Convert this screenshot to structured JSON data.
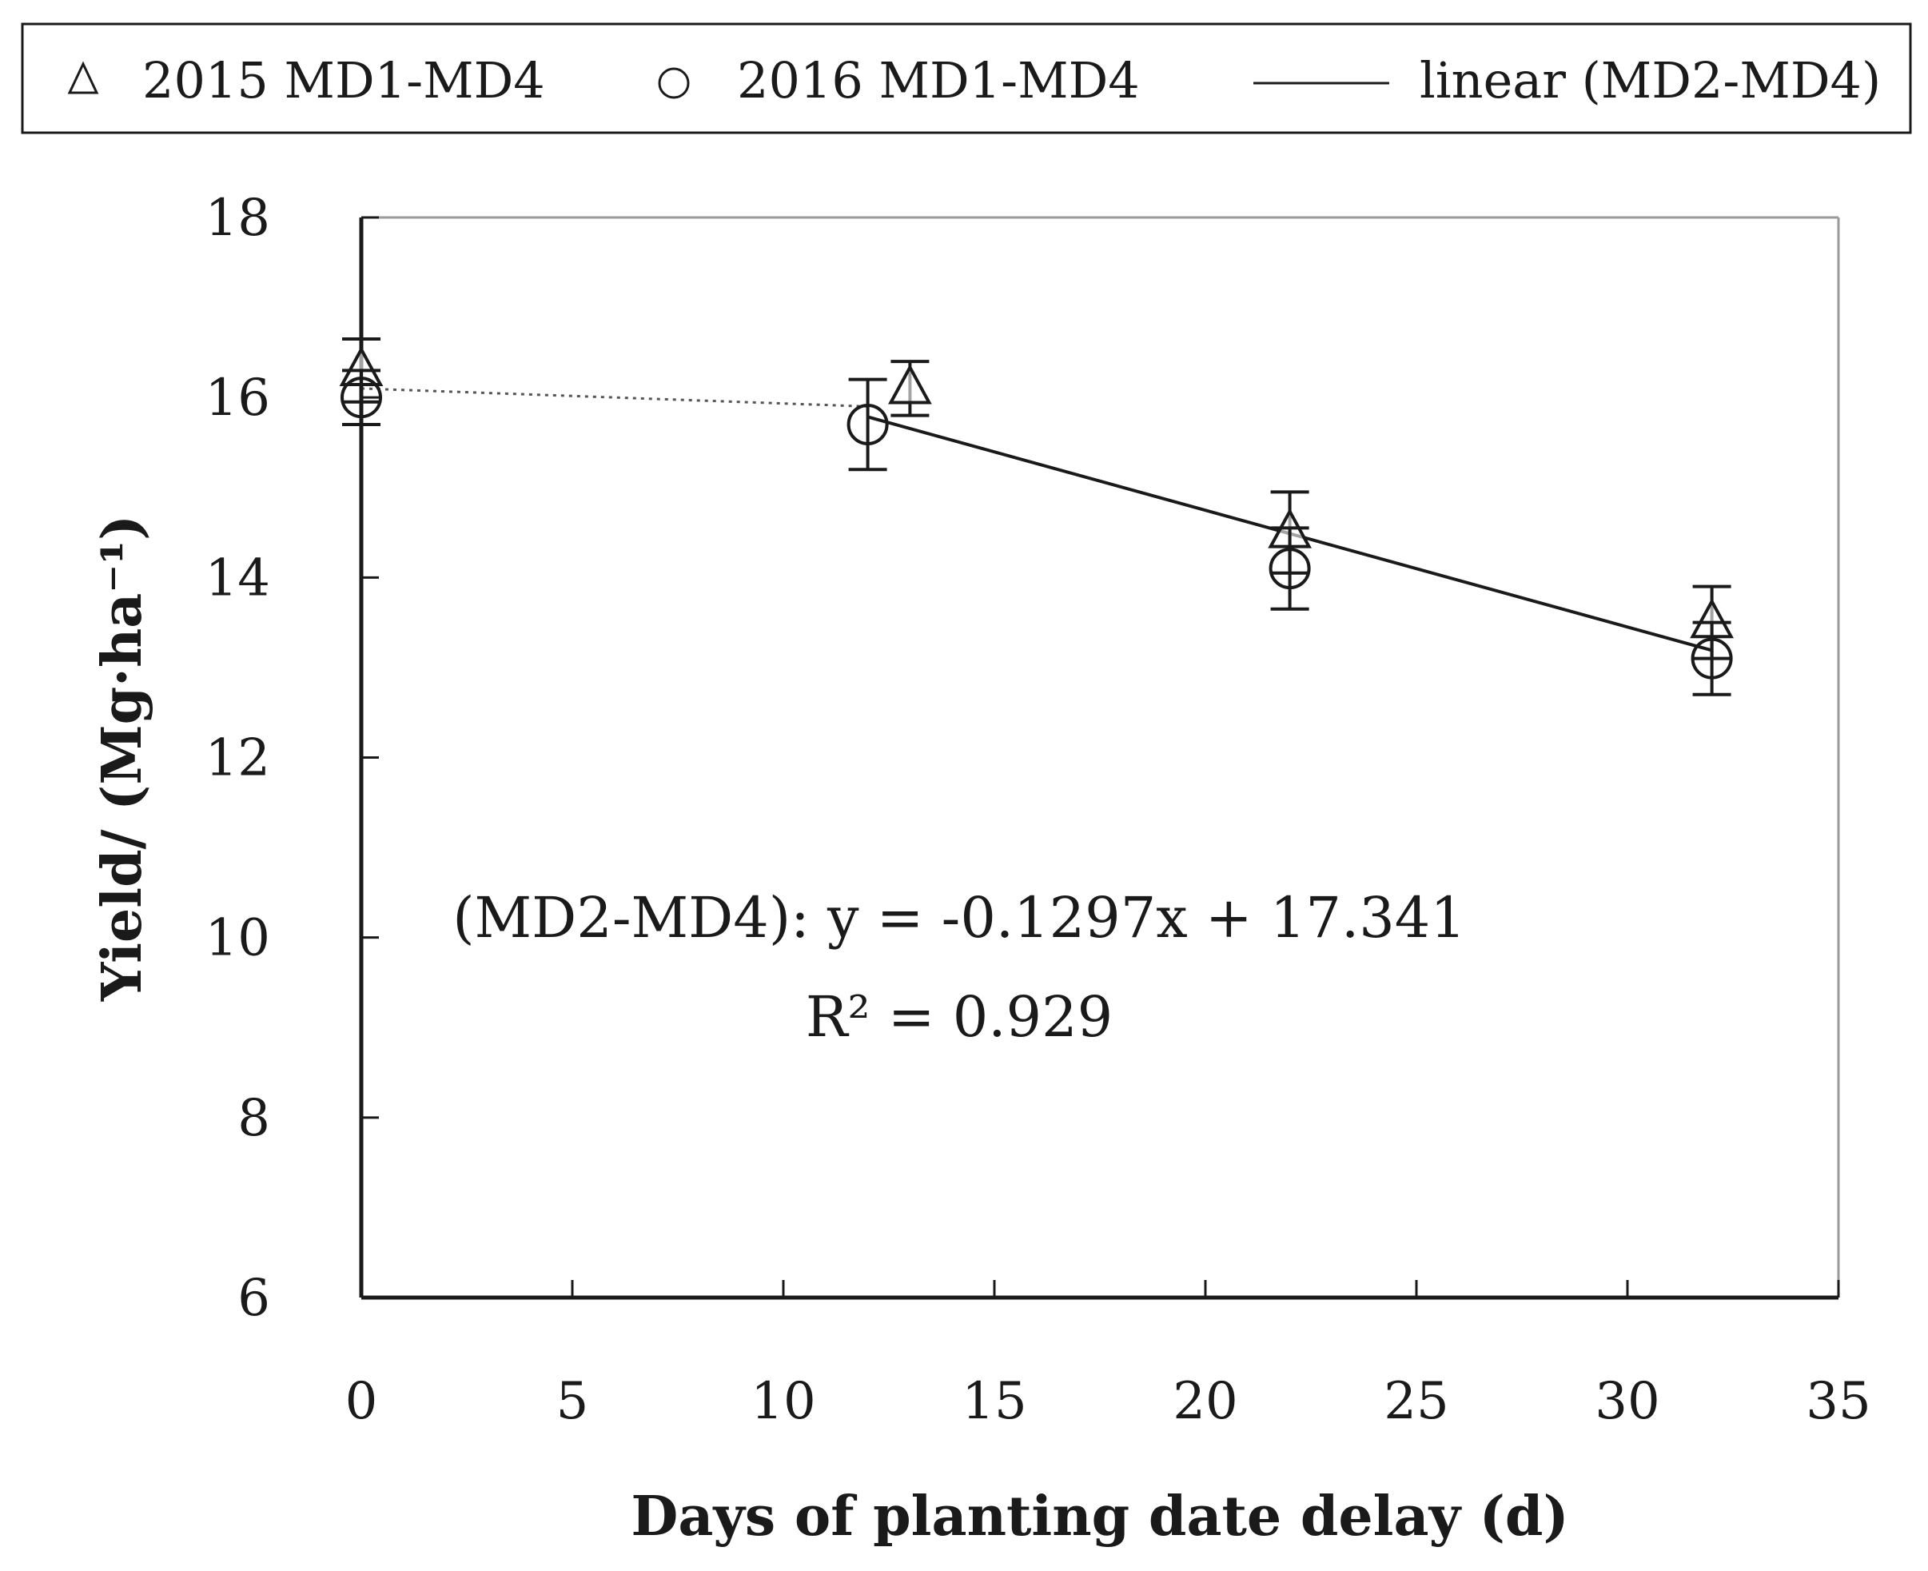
{
  "chart_data": {
    "type": "scatter",
    "title": "",
    "xlabel": "Days of planting date delay (d)",
    "ylabel": "Yield/ (Mg·ha⁻¹)",
    "xlim": [
      0,
      35
    ],
    "ylim": [
      6,
      18
    ],
    "x_ticks": [
      "0",
      "5",
      "10",
      "15",
      "20",
      "25",
      "30",
      "35"
    ],
    "y_ticks": [
      "6",
      "8",
      "10",
      "12",
      "14",
      "16",
      "18"
    ],
    "grid": false,
    "legend_position": "top",
    "legend": [
      {
        "marker": "triangle",
        "label": "2015 MD1-MD4"
      },
      {
        "marker": "circle",
        "label": "2016 MD1-MD4"
      },
      {
        "marker": "line",
        "label": "linear (MD2-MD4)"
      }
    ],
    "series": [
      {
        "name": "2015 MD1-MD4",
        "marker": "triangle",
        "x": [
          0,
          13,
          22,
          32
        ],
        "y": [
          16.3,
          16.1,
          14.5,
          13.5
        ],
        "err": [
          0.35,
          0.3,
          0.45,
          0.4
        ]
      },
      {
        "name": "2016 MD1-MD4",
        "marker": "circle",
        "x": [
          0,
          12,
          22,
          32
        ],
        "y": [
          16.0,
          15.7,
          14.1,
          13.1
        ],
        "err": [
          0.3,
          0.5,
          0.45,
          0.4
        ]
      }
    ],
    "trendline": {
      "name": "linear (MD2-MD4)",
      "slope": -0.1297,
      "intercept": 17.341,
      "x_range": [
        12,
        32
      ]
    },
    "connector": {
      "style": "dotted",
      "x": [
        0,
        12
      ],
      "y": [
        16.1,
        15.9
      ]
    },
    "annotations": {
      "equation": "(MD2-MD4): y = -0.1297x + 17.341",
      "r2": "R² = 0.929"
    }
  }
}
